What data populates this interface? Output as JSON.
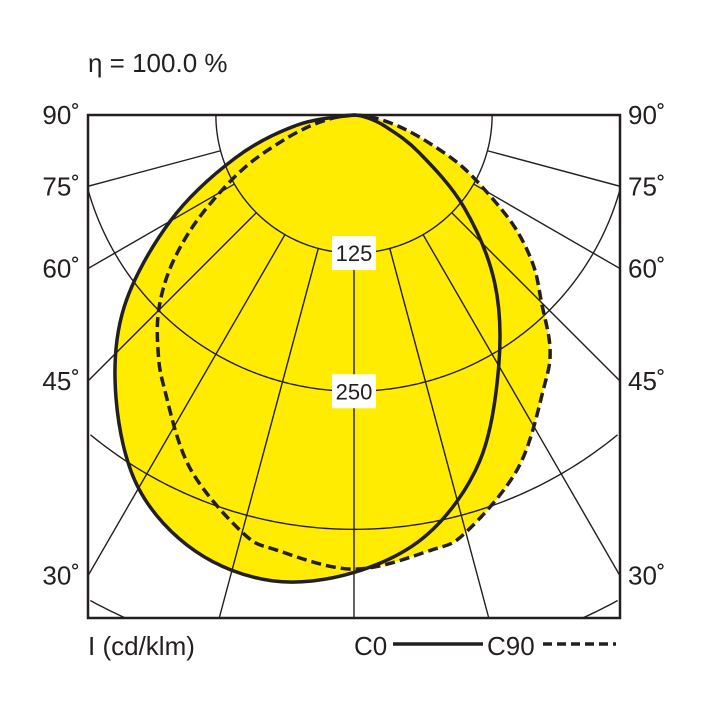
{
  "chart_data": {
    "type": "polar",
    "title": "η = 100.0 %",
    "unit_label": "I (cd/klm)",
    "fill_color": "#ffec00",
    "line_color": "#231f20",
    "radial_rings": [
      125,
      250,
      375,
      500
    ],
    "ring_labels": [
      "125",
      "250"
    ],
    "angle_ticks": [
      {
        "angle": 90,
        "label": "90˚"
      },
      {
        "angle": 75,
        "label": "75˚"
      },
      {
        "angle": 60,
        "label": "60˚"
      },
      {
        "angle": 45,
        "label": "45˚"
      },
      {
        "angle": 30,
        "label": "30˚"
      }
    ],
    "angle_grid_step": 15,
    "series": [
      {
        "name": "C0",
        "style": "solid",
        "gamma": [
          -90,
          -80,
          -70,
          -60,
          -50,
          -40,
          -30,
          -20,
          -10,
          0,
          10,
          20,
          30,
          40,
          50,
          60,
          70,
          80,
          90
        ],
        "intensity": [
          0,
          52,
          115,
          192,
          272,
          335,
          390,
          420,
          428,
          414,
          385,
          333,
          262,
          198,
          130,
          68,
          30,
          10,
          0
        ]
      },
      {
        "name": "C90",
        "style": "dashed",
        "gamma": [
          -90,
          -85,
          -80,
          -75,
          -70,
          -65,
          -60,
          -55,
          -50,
          -45,
          -40,
          -35,
          -25,
          -15,
          -10,
          0,
          10,
          15,
          25,
          35,
          40,
          45,
          50,
          55,
          60,
          65,
          70,
          75,
          80,
          85,
          90
        ],
        "intensity": [
          0,
          10,
          25,
          45,
          70,
          105,
          140,
          180,
          218,
          250,
          276,
          300,
          352,
          391,
          400,
          411,
          400,
          391,
          352,
          300,
          276,
          240,
          212,
          178,
          138,
          105,
          70,
          45,
          25,
          10,
          0
        ]
      }
    ]
  }
}
